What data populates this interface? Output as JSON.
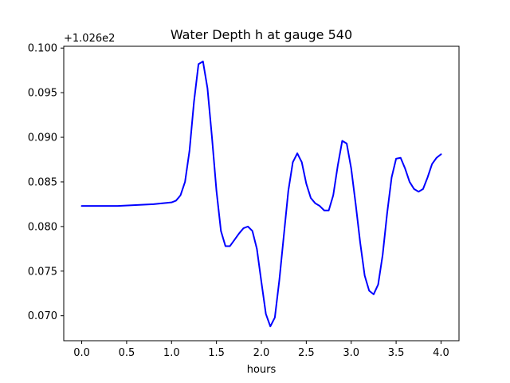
{
  "chart_data": {
    "type": "line",
    "title": "Water Depth h at gauge 540",
    "xlabel": "hours",
    "ylabel": "",
    "y_offset_label": "+1.026e2",
    "xlim": [
      -0.2,
      4.2
    ],
    "ylim": [
      0.0672,
      0.1002
    ],
    "grid": false,
    "x_ticks": [
      0.0,
      0.5,
      1.0,
      1.5,
      2.0,
      2.5,
      3.0,
      3.5,
      4.0
    ],
    "x_tick_labels": [
      "0.0",
      "0.5",
      "1.0",
      "1.5",
      "2.0",
      "2.5",
      "3.0",
      "3.5",
      "4.0"
    ],
    "y_ticks": [
      0.07,
      0.075,
      0.08,
      0.085,
      0.09,
      0.095,
      0.1
    ],
    "y_tick_labels": [
      "0.070",
      "0.075",
      "0.080",
      "0.085",
      "0.090",
      "0.095",
      "0.100"
    ],
    "series": [
      {
        "color": "#0000ff",
        "x": [
          0.0,
          0.2,
          0.4,
          0.6,
          0.8,
          1.0,
          1.05,
          1.1,
          1.15,
          1.2,
          1.25,
          1.3,
          1.35,
          1.4,
          1.45,
          1.5,
          1.55,
          1.6,
          1.65,
          1.7,
          1.75,
          1.8,
          1.85,
          1.9,
          1.95,
          2.0,
          2.05,
          2.1,
          2.15,
          2.2,
          2.25,
          2.3,
          2.35,
          2.4,
          2.45,
          2.5,
          2.55,
          2.6,
          2.65,
          2.7,
          2.75,
          2.8,
          2.85,
          2.9,
          2.95,
          3.0,
          3.05,
          3.1,
          3.15,
          3.2,
          3.25,
          3.3,
          3.35,
          3.4,
          3.45,
          3.5,
          3.55,
          3.6,
          3.65,
          3.7,
          3.75,
          3.8,
          3.85,
          3.9,
          3.95,
          4.0
        ],
        "y": [
          0.0823,
          0.0823,
          0.0823,
          0.0824,
          0.0825,
          0.0827,
          0.0829,
          0.0835,
          0.085,
          0.0885,
          0.094,
          0.0982,
          0.0985,
          0.0955,
          0.09,
          0.084,
          0.0795,
          0.0778,
          0.0778,
          0.0785,
          0.0792,
          0.0798,
          0.08,
          0.0795,
          0.0775,
          0.0738,
          0.0702,
          0.0688,
          0.0698,
          0.074,
          0.079,
          0.084,
          0.0872,
          0.0882,
          0.0872,
          0.0848,
          0.0832,
          0.0826,
          0.0823,
          0.0818,
          0.0818,
          0.0835,
          0.0868,
          0.0896,
          0.0893,
          0.0865,
          0.0825,
          0.0782,
          0.0745,
          0.0728,
          0.0724,
          0.0735,
          0.0768,
          0.0815,
          0.0855,
          0.0876,
          0.0877,
          0.0865,
          0.085,
          0.0842,
          0.0839,
          0.0842,
          0.0855,
          0.087,
          0.0877,
          0.0881
        ]
      }
    ]
  }
}
